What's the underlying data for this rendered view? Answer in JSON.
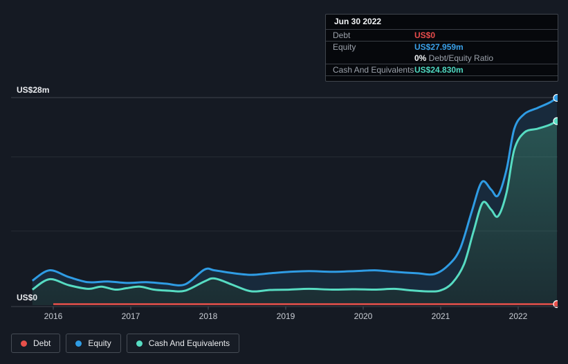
{
  "page": {
    "background": "#151a23"
  },
  "colors": {
    "debt": "#e8504a",
    "equity": "#2f9ce4",
    "cash": "#57dcc2",
    "debt_text": "#e84c4c",
    "equity_text": "#3aa0e8",
    "cash_text": "#4fd8c0",
    "grid_strong": "#3e444d",
    "grid_faint": "#262c35",
    "tick": "#4d545e"
  },
  "tooltip": {
    "title": "Jun 30 2022",
    "debt_label": "Debt",
    "debt_value": "US$0",
    "equity_label": "Equity",
    "equity_value": "US$27.959m",
    "ratio_bold": "0%",
    "ratio_rest": " Debt/Equity Ratio",
    "cash_label": "Cash And Equivalents",
    "cash_value": "US$24.830m"
  },
  "legend": {
    "items": [
      {
        "label": "Debt",
        "color": "#e8504a"
      },
      {
        "label": "Equity",
        "color": "#2f9ce4"
      },
      {
        "label": "Cash And Equivalents",
        "color": "#57dcc2"
      }
    ]
  },
  "axis": {
    "y_top_label": "US$28m",
    "y_bottom_label": "US$0",
    "x_tick_labels": [
      "2016",
      "2017",
      "2018",
      "2019",
      "2020",
      "2021",
      "2022"
    ]
  },
  "chart_data": {
    "type": "area",
    "title": "Debt to Equity history",
    "x_unit": "decimal_year",
    "xlim": [
      2015.73,
      2022.52
    ],
    "ylim": [
      0,
      28
    ],
    "y_gridline_values": [
      10,
      20,
      28
    ],
    "x_tick_years": [
      2016,
      2017,
      2018,
      2019,
      2020,
      2021,
      2022
    ],
    "legend_position": "bottom-left",
    "series": [
      {
        "name": "Debt",
        "color": "#e8504a",
        "x": [
          2016.0,
          2022.5
        ],
        "values": [
          0,
          0
        ]
      },
      {
        "name": "Equity",
        "color": "#2f9ce4",
        "x": [
          2015.73,
          2015.95,
          2016.2,
          2016.45,
          2016.7,
          2016.95,
          2017.2,
          2017.45,
          2017.7,
          2017.95,
          2018.08,
          2018.3,
          2018.55,
          2018.8,
          2019.05,
          2019.3,
          2019.6,
          2019.9,
          2020.15,
          2020.4,
          2020.7,
          2020.92,
          2021.1,
          2021.25,
          2021.4,
          2021.53,
          2021.65,
          2021.74,
          2021.85,
          2021.95,
          2022.08,
          2022.25,
          2022.4,
          2022.5
        ],
        "values": [
          3.3,
          4.7,
          3.8,
          3.1,
          3.2,
          3.0,
          3.1,
          2.9,
          2.8,
          4.8,
          4.7,
          4.35,
          4.1,
          4.3,
          4.5,
          4.6,
          4.5,
          4.6,
          4.7,
          4.5,
          4.3,
          4.2,
          5.4,
          7.6,
          12.6,
          16.6,
          15.6,
          14.8,
          18.3,
          23.8,
          25.8,
          26.6,
          27.3,
          27.959
        ]
      },
      {
        "name": "Cash And Equivalents",
        "color": "#57dcc2",
        "x": [
          2015.73,
          2015.95,
          2016.2,
          2016.45,
          2016.62,
          2016.8,
          2016.95,
          2017.12,
          2017.3,
          2017.5,
          2017.7,
          2017.95,
          2018.08,
          2018.3,
          2018.5,
          2018.62,
          2018.8,
          2019.05,
          2019.3,
          2019.6,
          2019.9,
          2020.15,
          2020.4,
          2020.62,
          2020.85,
          2021.0,
          2021.15,
          2021.3,
          2021.42,
          2021.54,
          2021.65,
          2021.74,
          2021.85,
          2021.95,
          2022.08,
          2022.25,
          2022.4,
          2022.5
        ],
        "values": [
          2.1,
          3.5,
          2.7,
          2.2,
          2.5,
          2.1,
          2.3,
          2.5,
          2.1,
          1.95,
          1.95,
          3.2,
          3.6,
          2.8,
          2.0,
          1.86,
          2.05,
          2.1,
          2.2,
          2.1,
          2.15,
          2.1,
          2.2,
          2.0,
          1.86,
          2.0,
          3.0,
          5.5,
          9.8,
          13.8,
          12.9,
          12.0,
          15.2,
          21.0,
          23.3,
          23.8,
          24.3,
          24.83
        ]
      }
    ],
    "end_markers": [
      {
        "series": "Debt",
        "x": 2022.5,
        "value": 0
      },
      {
        "series": "Equity",
        "x": 2022.5,
        "value": 27.959
      },
      {
        "series": "Cash And Equivalents",
        "x": 2022.5,
        "value": 24.83
      }
    ]
  }
}
